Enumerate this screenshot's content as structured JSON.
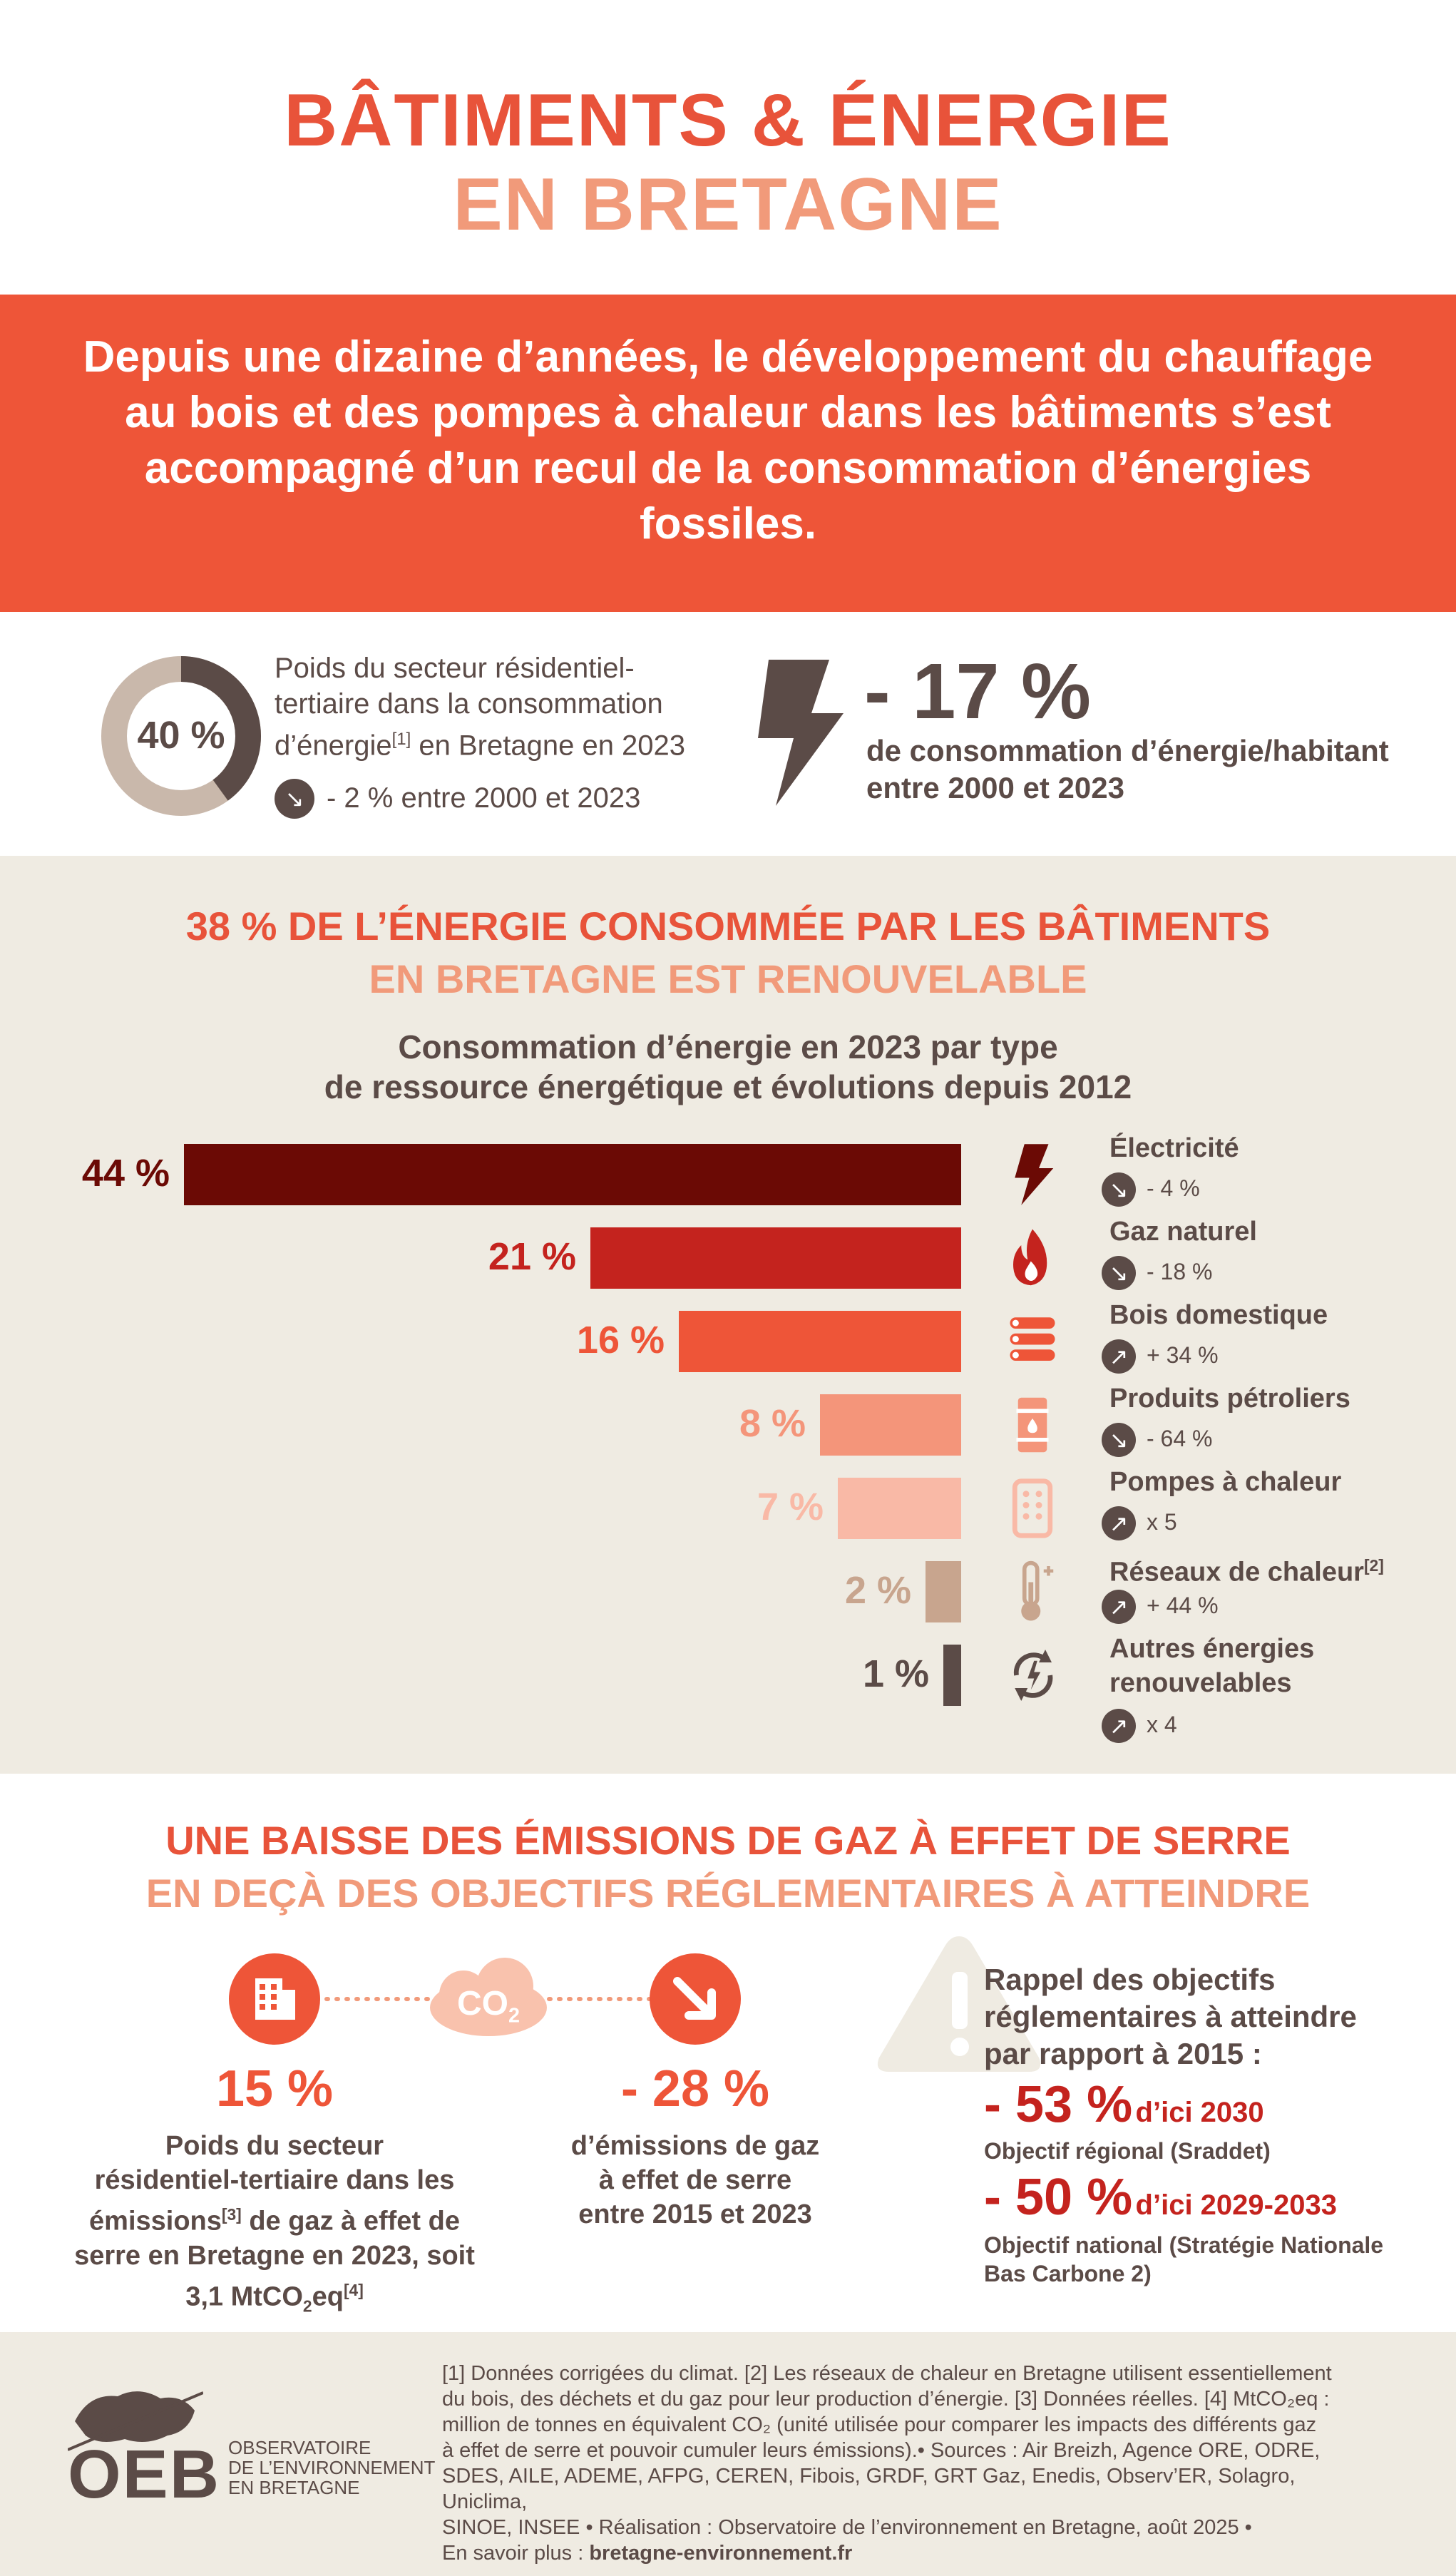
{
  "header": {
    "title_line1": "BÂTIMENTS & ÉNERGIE",
    "title_line2": "EN BRETAGNE"
  },
  "banner": {
    "text": "Depuis une dizaine d’années, le développement du chauffage au bois et des pompes à chaleur dans les bâtiments s’est accompagné d’un recul de la consommation d’énergies fossiles."
  },
  "stats": {
    "donut_value": "40 %",
    "donut_fraction": 0.4,
    "weight_line1": "Poids du secteur résidentiel-",
    "weight_line2": "tertiaire dans la consommation",
    "weight_line3_a": "d’énergie",
    "weight_line3_sup": "[1]",
    "weight_line3_b": " en Bretagne en 2023",
    "weight_change": "- 2 % entre 2000 et 2023",
    "energy_big": "- 17 %",
    "energy_line1": "de consommation d’énergie/habitant",
    "energy_line2": "entre 2000 et 2023"
  },
  "section2": {
    "title_line1": "38 % DE L’ÉNERGIE CONSOMMÉE PAR LES BÂTIMENTS",
    "title_line2": "EN BRETAGNE EST RENOUVELABLE",
    "subtitle_line1": "Consommation d’énergie en 2023 par type",
    "subtitle_line2": "de ressource énergétique et évolutions depuis 2012"
  },
  "chart_data": {
    "type": "bar",
    "orientation": "horizontal",
    "title": "Consommation d’énergie en 2023 par type de ressource énergétique et évolutions depuis 2012",
    "categories": [
      "Électricité",
      "Gaz naturel",
      "Bois domestique",
      "Produits pétroliers",
      "Pompes à chaleur",
      "Réseaux de chaleur",
      "Autres énergies renouvelables"
    ],
    "values": [
      44,
      21,
      16,
      8,
      7,
      2,
      1
    ],
    "labels": [
      "44 %",
      "21 %",
      "16 %",
      "8 %",
      "7 %",
      "2 %",
      "1 %"
    ],
    "changes": [
      "- 4 %",
      "- 18 %",
      "+ 34 %",
      "- 64 %",
      "x 5",
      "+ 44 %",
      "x 4"
    ],
    "change_direction": [
      "down",
      "down",
      "up",
      "down",
      "up",
      "up",
      "up"
    ],
    "colors": [
      "#6b0a05",
      "#c4231e",
      "#ee5538",
      "#f4957a",
      "#f9b9a6",
      "#c8a58e",
      "#5b4b47"
    ],
    "label_colors": [
      "#6b0a05",
      "#c4231e",
      "#ee5538",
      "#f4957a",
      "#f9b9a6",
      "#c8a58e",
      "#5b4b47"
    ],
    "name_sups": [
      "",
      "",
      "",
      "",
      "",
      "[2]",
      ""
    ],
    "icons": [
      "lightning-icon",
      "flame-icon",
      "logs-icon",
      "oil-barrel-icon",
      "heat-pump-icon",
      "thermometer-icon",
      "renewable-cycle-icon"
    ],
    "xlim": [
      0,
      44
    ]
  },
  "section3": {
    "title_line1": "UNE BAISSE DES ÉMISSIONS DE GAZ À EFFET DE SERRE",
    "title_line2": "EN DEÇÀ DES OBJECTIFS RÉGLEMENTAIRES À ATTEINDRE",
    "co2_label": "CO",
    "co2_sub": "2",
    "left_value": "15 %",
    "left_line1": "Poids du secteur",
    "left_line2": "résidentiel-tertiaire dans les",
    "left_line3_a": "émissions",
    "left_line3_sup": "[3]",
    "left_line3_b": " de gaz à effet de",
    "left_line4": "serre en Bretagne en 2023, soit",
    "left_line5_a": "3,1 MtCO",
    "left_line5_sub": "2",
    "left_line5_b": "eq",
    "left_line5_sup": "[4]",
    "mid_value": "- 28 %",
    "mid_line1": "d’émissions de gaz",
    "mid_line2": "à effet de serre",
    "mid_line3": "entre 2015 et 2023",
    "right_intro1": "Rappel des objectifs",
    "right_intro2": "réglementaires à atteindre",
    "right_intro3": "par rapport à 2015 :",
    "goal1_value": "- 53 %",
    "goal1_when": "d’ici 2030",
    "goal1_desc": "Objectif régional (Sraddet)",
    "goal2_value": "- 50 %",
    "goal2_when": "d’ici 2029-2033",
    "goal2_desc1": "Objectif national (Stratégie Nationale",
    "goal2_desc2": "Bas Carbone 2)"
  },
  "footer": {
    "logo_text": "OEB",
    "logo_sub1": "OBSERVATOIRE",
    "logo_sub2": "DE L’ENVIRONNEMENT",
    "logo_sub3": "EN BRETAGNE",
    "line1": "[1] Données corrigées du climat. [2] Les réseaux de chaleur en Bretagne utilisent essentiellement",
    "line2": "du bois, des déchets et du gaz pour leur production d’énergie. [3] Données réelles. [4] MtCO₂eq :",
    "line3": "million de tonnes en équivalent CO₂ (unité utilisée pour comparer les impacts des différents gaz",
    "line4": "à effet de serre et pouvoir cumuler leurs émissions).• Sources : Air Breizh, Agence ORE, ODRE,",
    "line5": "SDES, AILE, ADEME, AFPG, CEREN, Fibois, GRDF, GRT Gaz, Enedis, Observ’ER, Solagro, Uniclima,",
    "line6": "SINOE, INSEE • Réalisation : Observatoire de l’environnement en Bretagne, août 2025 •",
    "line7_a": "En savoir plus : ",
    "line7_b": "bretagne-environnement.fr"
  }
}
